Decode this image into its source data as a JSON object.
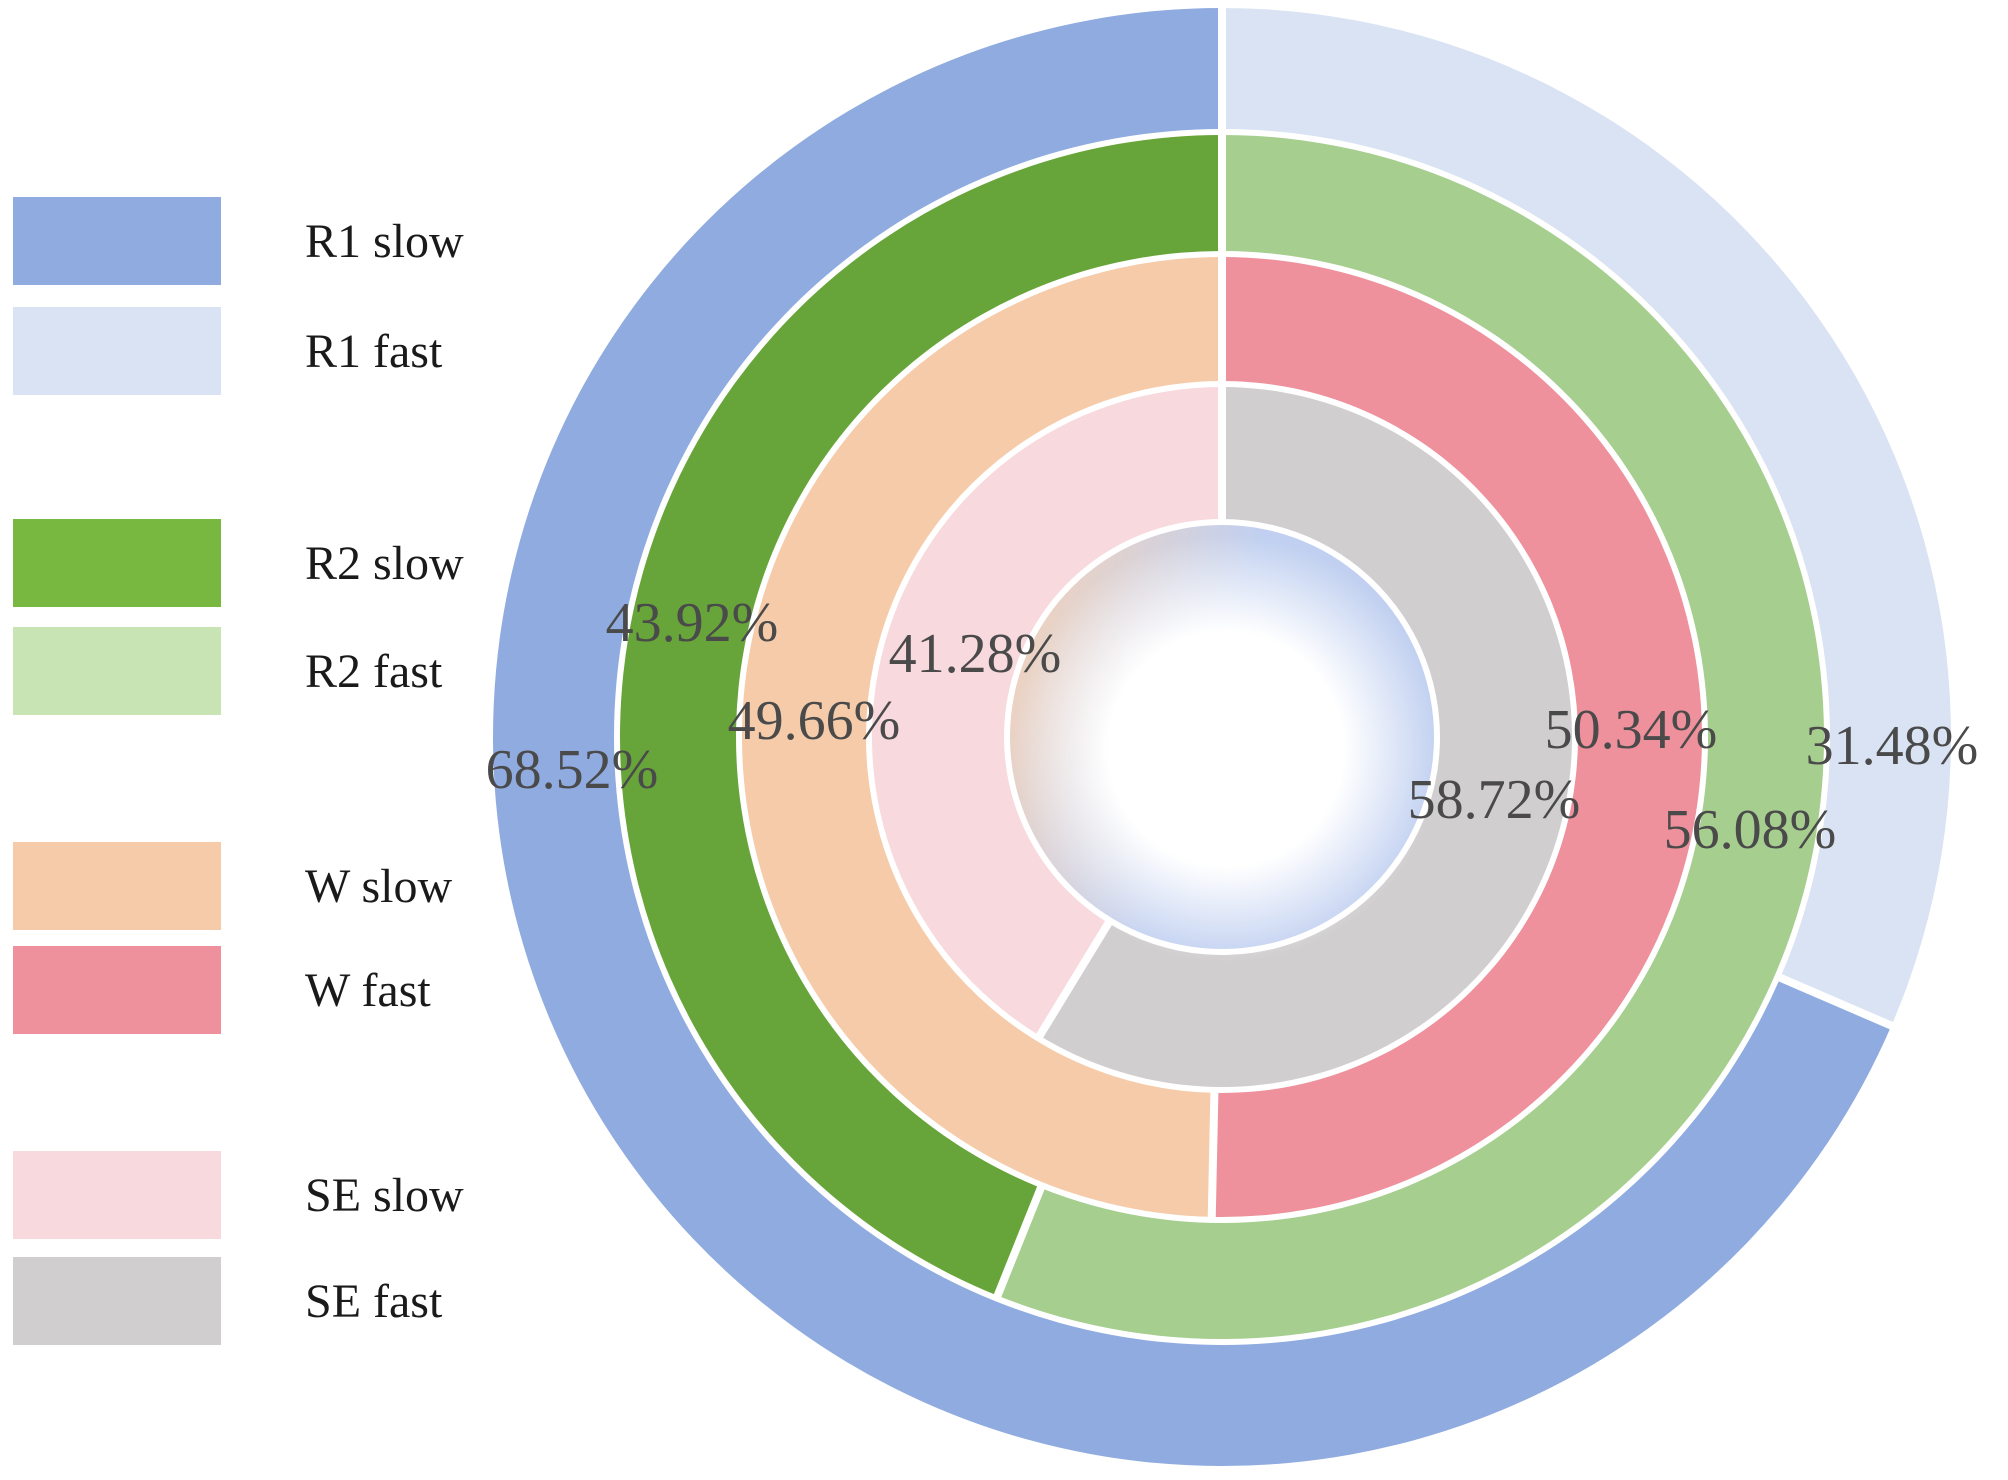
{
  "chart_data": {
    "type": "donut",
    "rings": [
      {
        "name": "R1",
        "segments": [
          {
            "label": "R1 slow",
            "value": 68.52,
            "value_label": "68.52%",
            "color": "#8FABDF"
          },
          {
            "label": "R1 fast",
            "value": 31.48,
            "value_label": "31.48%",
            "color": "#DAE3F3"
          }
        ]
      },
      {
        "name": "R2",
        "segments": [
          {
            "label": "R2 slow",
            "value": 43.92,
            "value_label": "43.92%",
            "color": "#67A53A"
          },
          {
            "label": "R2 fast",
            "value": 56.08,
            "value_label": "56.08%",
            "color": "#A6CE8F"
          }
        ]
      },
      {
        "name": "W",
        "segments": [
          {
            "label": "W slow",
            "value": 49.66,
            "value_label": "49.66%",
            "color": "#F6CBA9"
          },
          {
            "label": "W fast",
            "value": 50.34,
            "value_label": "50.34%",
            "color": "#EE919C"
          }
        ]
      },
      {
        "name": "SE",
        "segments": [
          {
            "label": "SE slow",
            "value": 41.28,
            "value_label": "41.28%",
            "color": "#F8D9DE"
          },
          {
            "label": "SE fast",
            "value": 58.72,
            "value_label": "58.72%",
            "color": "#D0CECF"
          }
        ]
      }
    ],
    "legend": [
      {
        "label": "R1 slow",
        "color": "#8FABDF"
      },
      {
        "label": "R1 fast",
        "color": "#DAE3F3"
      },
      {
        "label": "R2 slow",
        "color": "#78B841"
      },
      {
        "label": "R2 fast",
        "color": "#C8E3B4"
      },
      {
        "label": "W slow",
        "color": "#F6CBA9"
      },
      {
        "label": "W fast",
        "color": "#EE919C"
      },
      {
        "label": "SE slow",
        "color": "#F8D9DE"
      },
      {
        "label": "SE fast",
        "color": "#D0CECF"
      }
    ],
    "legend_position": "left",
    "direction": "counter-clockwise from top for slow, clockwise from top for fast",
    "center_gradient_colors": [
      "#F6CBA9",
      "#B6C8EE",
      "#FFFFFF"
    ]
  }
}
